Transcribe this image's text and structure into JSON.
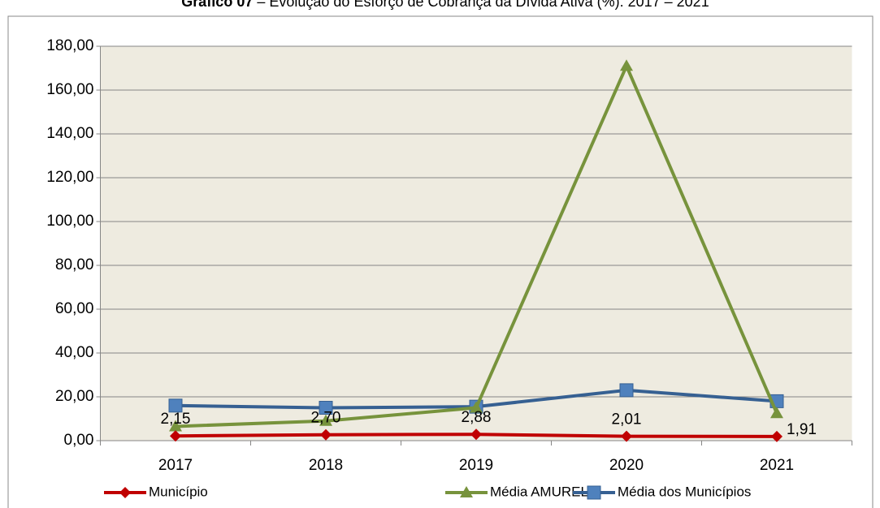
{
  "chart_data": {
    "type": "line",
    "title_number": "Gráfico 07",
    "title": "– Evolução do Esforço de Cobrança da Dívida Ativa (%): 2017 – 2021",
    "categories": [
      "2017",
      "2018",
      "2019",
      "2020",
      "2021"
    ],
    "series": [
      {
        "name": "Município",
        "color": "#c00000",
        "marker": "diamond",
        "values": [
          2.15,
          2.7,
          2.88,
          2.01,
          1.91
        ],
        "value_labels": [
          "2,15",
          "2,70",
          "2,88",
          "2,01",
          "1,91"
        ]
      },
      {
        "name": "Média AMUREL",
        "color": "#77933c",
        "marker": "triangle",
        "values": [
          6.5,
          9,
          15,
          171,
          12.5
        ]
      },
      {
        "name": "Média dos Municípios",
        "color": "#366092",
        "marker": "square",
        "values": [
          16,
          15,
          15.5,
          23,
          18
        ]
      }
    ],
    "ylim": [
      0,
      180
    ],
    "yticks": [
      {
        "value": 0,
        "label": "0,00"
      },
      {
        "value": 20,
        "label": "20,00"
      },
      {
        "value": 40,
        "label": "40,00"
      },
      {
        "value": 60,
        "label": "60,00"
      },
      {
        "value": 80,
        "label": "80,00"
      },
      {
        "value": 100,
        "label": "100,00"
      },
      {
        "value": 120,
        "label": "120,00"
      },
      {
        "value": 140,
        "label": "140,00"
      },
      {
        "value": 160,
        "label": "160,00"
      },
      {
        "value": 180,
        "label": "180,00"
      }
    ],
    "grid": true,
    "legend": "bottom"
  }
}
